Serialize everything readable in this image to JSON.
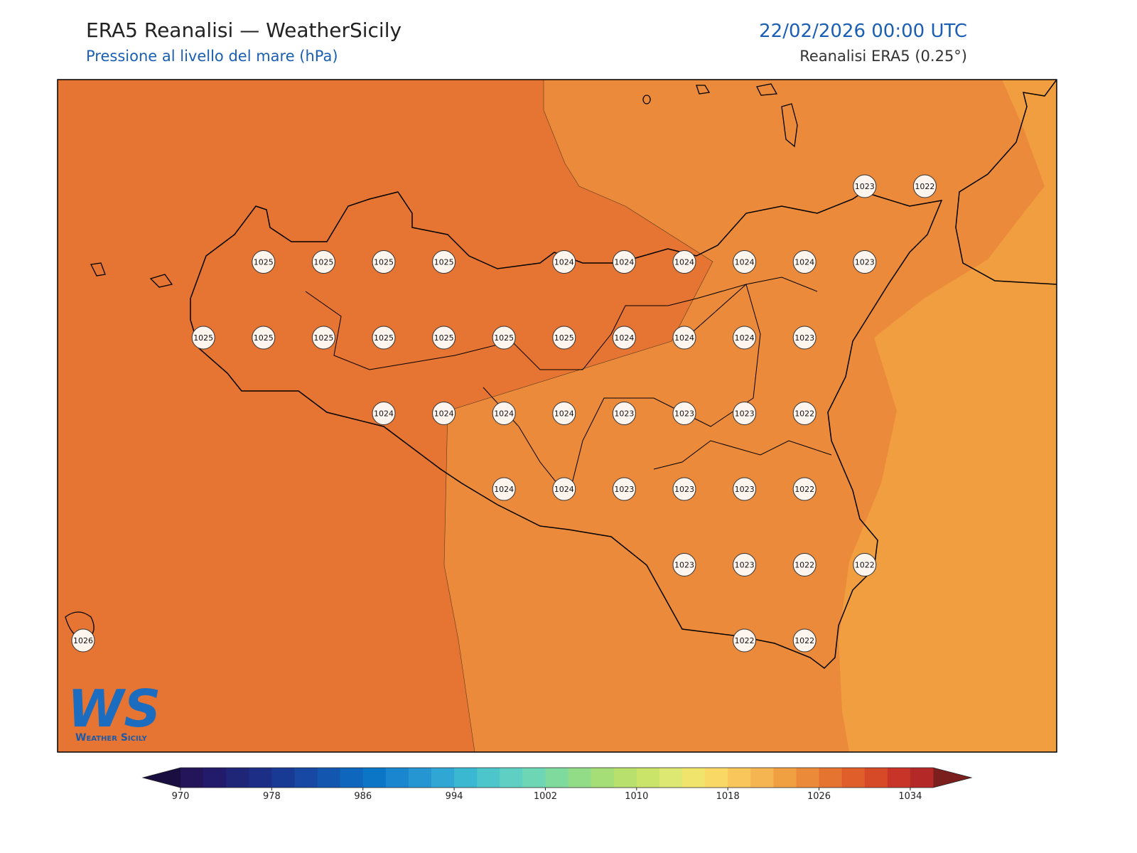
{
  "header": {
    "title": "ERA5 Reanalisi — WeatherSicily",
    "subtitle": "Pressione al livello del mare (hPa)",
    "datetime": "22/02/2026 00:00 UTC",
    "source": "Reanalisi ERA5 (0.25°)"
  },
  "map": {
    "pressure_grid": [
      [
        null,
        null,
        null,
        null,
        null,
        null,
        null,
        null,
        null,
        null,
        null,
        null,
        null,
        1023,
        1022
      ],
      [
        null,
        null,
        null,
        1025,
        1025,
        1025,
        1025,
        null,
        1024,
        1024,
        1024,
        1024,
        1024,
        1023,
        null
      ],
      [
        null,
        null,
        1025,
        1025,
        1025,
        1025,
        1025,
        1025,
        1025,
        1024,
        1024,
        1024,
        1023,
        null,
        null
      ],
      [
        null,
        null,
        null,
        null,
        null,
        1024,
        1024,
        1024,
        1024,
        1023,
        1023,
        1023,
        1022,
        null,
        null
      ],
      [
        null,
        null,
        null,
        null,
        null,
        null,
        null,
        1024,
        1024,
        1023,
        1023,
        1023,
        1022,
        null,
        null
      ],
      [
        null,
        null,
        null,
        null,
        null,
        null,
        null,
        null,
        null,
        null,
        1023,
        1023,
        1022,
        1022,
        null
      ],
      [
        1026,
        null,
        null,
        null,
        null,
        null,
        null,
        null,
        null,
        null,
        null,
        1022,
        1022,
        null,
        null
      ]
    ]
  },
  "colorbar": {
    "range": [
      970,
      1036
    ],
    "ticks": [
      970,
      978,
      986,
      994,
      1002,
      1010,
      1018,
      1026,
      1034
    ],
    "under_color": "#1a0d40",
    "over_color": "#7a1e1e",
    "colors": [
      "#24145a",
      "#221a6a",
      "#1f2577",
      "#1c2e86",
      "#193a94",
      "#1748a3",
      "#1356b0",
      "#0e66bd",
      "#0b76c6",
      "#1a86cf",
      "#2596d2",
      "#2fa6d4",
      "#3ab8d2",
      "#4cc5cb",
      "#5ecfc2",
      "#6dd6b4",
      "#7fda9e",
      "#92dc88",
      "#a5de76",
      "#b8e06c",
      "#cae46a",
      "#dce872",
      "#f0e46c",
      "#fad865",
      "#f8c65a",
      "#f5b550",
      "#f0a040",
      "#eb8b3a",
      "#e67431",
      "#e05e2a",
      "#d64a28",
      "#c83428",
      "#b42828"
    ]
  },
  "logo": {
    "mark": "WS",
    "name": "Weather Sicily"
  }
}
